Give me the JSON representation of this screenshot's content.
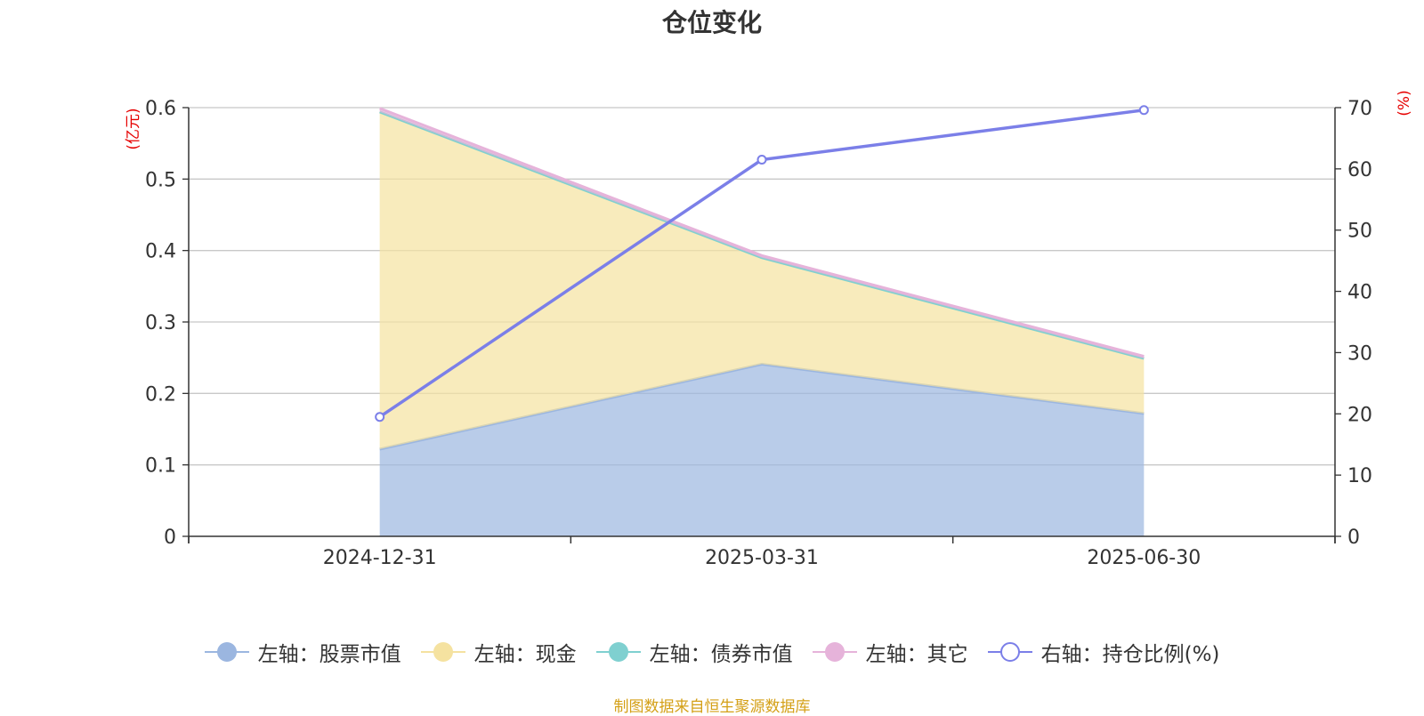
{
  "title": "仓位变化",
  "source_note": "制图数据来自恒生聚源数据库",
  "colors": {
    "stock": "#9bb6e0",
    "cash": "#f5e2a0",
    "bond": "#7fd0d0",
    "other": "#e6b3da",
    "ratio": "#7b7fe8",
    "axis_unit": "#e60000",
    "grid": "#c8c8c8"
  },
  "chart_data": {
    "type": "area",
    "categories": [
      "2024-12-31",
      "2025-03-31",
      "2025-06-30"
    ],
    "left_axis": {
      "label": "(亿元)",
      "min": 0,
      "max": 0.6,
      "ticks": [
        "0",
        "0.1",
        "0.2",
        "0.3",
        "0.4",
        "0.5",
        "0.6"
      ]
    },
    "right_axis": {
      "label": "(%)",
      "min": 0,
      "max": 70,
      "ticks": [
        "0",
        "10",
        "20",
        "30",
        "40",
        "50",
        "60",
        "70"
      ]
    },
    "stacked": true,
    "grid": true,
    "legend_position": "bottom",
    "series": [
      {
        "name": "左轴：股票市值",
        "axis": "left",
        "values": [
          0.122,
          0.241,
          0.172
        ],
        "color": "#9bb6e0"
      },
      {
        "name": "左轴：现金",
        "axis": "left",
        "values": [
          0.472,
          0.149,
          0.077
        ],
        "color": "#f5e2a0"
      },
      {
        "name": "左轴：债券市值",
        "axis": "left",
        "values": [
          0,
          0,
          0
        ],
        "color": "#7fd0d0"
      },
      {
        "name": "左轴：其它",
        "axis": "left",
        "values": [
          0.005,
          0.003,
          0.003
        ],
        "color": "#e6b3da"
      },
      {
        "name": "右轴：持仓比例(%)",
        "axis": "right",
        "type": "line",
        "values": [
          19.5,
          61.5,
          69.6
        ],
        "color": "#7b7fe8"
      }
    ]
  }
}
